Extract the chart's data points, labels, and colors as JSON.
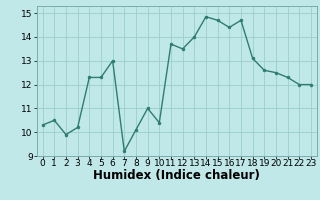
{
  "x": [
    0,
    1,
    2,
    3,
    4,
    5,
    6,
    7,
    8,
    9,
    10,
    11,
    12,
    13,
    14,
    15,
    16,
    17,
    18,
    19,
    20,
    21,
    22,
    23
  ],
  "y": [
    10.3,
    10.5,
    9.9,
    10.2,
    12.3,
    12.3,
    13.0,
    9.2,
    10.1,
    11.0,
    10.4,
    13.7,
    13.5,
    14.0,
    14.85,
    14.7,
    14.4,
    14.7,
    13.1,
    12.6,
    12.5,
    12.3,
    12.0,
    12.0
  ],
  "line_color": "#2e7d6e",
  "marker": "o",
  "marker_size": 2.0,
  "linewidth": 1.0,
  "bg_color": "#c0e8e8",
  "grid_color": "#9ccece",
  "xlabel": "Humidex (Indice chaleur)",
  "xlim": [
    -0.5,
    23.5
  ],
  "ylim": [
    9,
    15.3
  ],
  "yticks": [
    9,
    10,
    11,
    12,
    13,
    14,
    15
  ],
  "xticks": [
    0,
    1,
    2,
    3,
    4,
    5,
    6,
    7,
    8,
    9,
    10,
    11,
    12,
    13,
    14,
    15,
    16,
    17,
    18,
    19,
    20,
    21,
    22,
    23
  ],
  "tick_fontsize": 6.5,
  "xlabel_fontsize": 8.5
}
